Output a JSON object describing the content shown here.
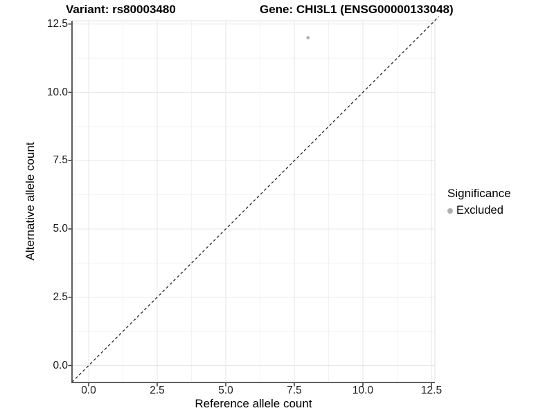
{
  "chart_data": {
    "type": "scatter",
    "titles": {
      "variant": "Variant: rs80003480",
      "gene": "Gene: CHI3L1 (ENSG00000133048)"
    },
    "xlabel": "Reference allele count",
    "ylabel": "Alternative allele count",
    "axis_range": [
      -0.61,
      13.15
    ],
    "tick_values": [
      0,
      2.5,
      5,
      7.5,
      10,
      12.5
    ],
    "tick_labels": [
      "0.0",
      "2.5",
      "5.0",
      "7.5",
      "10.0",
      "12.5"
    ],
    "minor_tick_values": [
      1.25,
      3.75,
      6.25,
      8.75,
      11.25
    ],
    "grid": true,
    "series": [
      {
        "name": "Excluded",
        "color": "#ababab",
        "points": [
          {
            "x": 8,
            "y": 12
          }
        ]
      }
    ],
    "identity_line": {
      "slope": 1,
      "intercept": 0,
      "style": "dashed",
      "color": "#000000"
    },
    "legend": {
      "title": "Significance",
      "position": "right",
      "items": [
        {
          "label": "Excluded",
          "color": "#b0b0b0"
        }
      ]
    },
    "colors": {
      "background": "#ffffff",
      "grid_major": "#e7e7e7",
      "grid_minor": "#f3f3f3",
      "panel_border": "#e0e0e0",
      "axis_line": "#4a4a4a",
      "tick_mark": "#333333",
      "tick_text": "#1a1a1a",
      "point": "#ababab"
    }
  }
}
